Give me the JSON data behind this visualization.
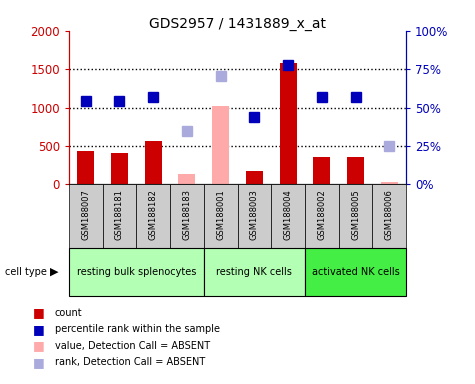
{
  "title": "GDS2957 / 1431889_x_at",
  "samples": [
    "GSM188007",
    "GSM188181",
    "GSM188182",
    "GSM188183",
    "GSM188001",
    "GSM188003",
    "GSM188004",
    "GSM188002",
    "GSM188005",
    "GSM188006"
  ],
  "count_values": [
    430,
    410,
    570,
    null,
    null,
    175,
    1580,
    350,
    350,
    null
  ],
  "count_absent_values": [
    null,
    null,
    null,
    130,
    1020,
    null,
    null,
    null,
    null,
    30
  ],
  "percentile_values": [
    1090,
    1085,
    1140,
    null,
    null,
    875,
    1560,
    1140,
    1140,
    null
  ],
  "percentile_absent_values": [
    null,
    null,
    null,
    700,
    1410,
    null,
    null,
    null,
    null,
    505
  ],
  "cell_types": [
    {
      "label": "resting bulk splenocytes",
      "start": 0,
      "end": 4,
      "color": "#b3ffb3"
    },
    {
      "label": "resting NK cells",
      "start": 4,
      "end": 7,
      "color": "#b3ffb3"
    },
    {
      "label": "activated NK cells",
      "start": 7,
      "end": 10,
      "color": "#44ee44"
    }
  ],
  "ylim_left": [
    0,
    2000
  ],
  "ylim_right": [
    0,
    100
  ],
  "yticks_left": [
    0,
    500,
    1000,
    1500,
    2000
  ],
  "yticks_right": [
    0,
    25,
    50,
    75,
    100
  ],
  "ytick_labels_left": [
    "0",
    "500",
    "1000",
    "1500",
    "2000"
  ],
  "ytick_labels_right": [
    "0%",
    "25%",
    "50%",
    "75%",
    "100%"
  ],
  "color_red": "#cc0000",
  "color_pink": "#ffaaaa",
  "color_blue": "#0000bb",
  "color_lightblue": "#aaaadd",
  "bar_width": 0.5,
  "marker_size": 7,
  "dotted_line_color": "#000000",
  "bg_color": "#d8d8d8",
  "sample_box_color": "#cccccc"
}
